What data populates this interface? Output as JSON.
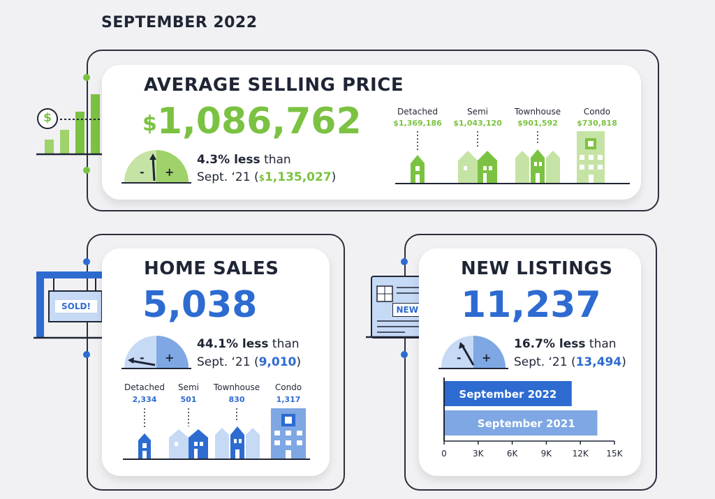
{
  "header": {
    "title": "SEPTEMBER 2022"
  },
  "price": {
    "title": "AVERAGE SELLING PRICE",
    "value_dollar": "$",
    "value": "1,086,762",
    "change_bold": "4.3% less",
    "change_rest": " than",
    "prev_label": "Sept. ‘21 (",
    "prev_dollar": "$",
    "prev_value": "1,135,027",
    "prev_close": ")",
    "icon_symbol": "$",
    "types": [
      {
        "label": "Detached",
        "value": "$1,369,186"
      },
      {
        "label": "Semi",
        "value": "$1,043,120"
      },
      {
        "label": "Townhouse",
        "value": "$901,592"
      },
      {
        "label": "Condo",
        "value": "$730,818"
      }
    ],
    "accent": "#7cc242"
  },
  "sales": {
    "title": "HOME SALES",
    "value": "5,038",
    "change_bold": "44.1% less",
    "change_rest": " than",
    "prev_label": "Sept. ‘21 (",
    "prev_value": "9,010",
    "prev_close": ")",
    "sign_text": "SOLD!",
    "types": [
      {
        "label": "Detached",
        "value": "2,334"
      },
      {
        "label": "Semi",
        "value": "501"
      },
      {
        "label": "Townhouse",
        "value": "830"
      },
      {
        "label": "Condo",
        "value": "1,317"
      }
    ],
    "accent": "#2d6bd1"
  },
  "listings": {
    "title": "NEW LISTINGS",
    "value": "11,237",
    "change_bold": "16.7% less",
    "change_rest": " than",
    "prev_label": "Sept. ‘21 (",
    "prev_value": "13,494",
    "prev_close": ")",
    "doc_text": "NEW!",
    "accent": "#2d6bd1"
  },
  "gauge_signs": {
    "minus": "-",
    "plus": "+"
  },
  "chart_data": {
    "type": "bar",
    "orientation": "horizontal",
    "categories": [
      "September 2022",
      "September 2021"
    ],
    "values": [
      11237,
      13494
    ],
    "colors": [
      "#2d6bd1",
      "#7ea7e3"
    ],
    "xlim": [
      0,
      15000
    ],
    "xticks": [
      0,
      3000,
      6000,
      9000,
      12000,
      15000
    ],
    "xtick_labels": [
      "0",
      "3K",
      "6K",
      "9K",
      "12K",
      "15K"
    ],
    "grid": false,
    "legend": "none"
  }
}
